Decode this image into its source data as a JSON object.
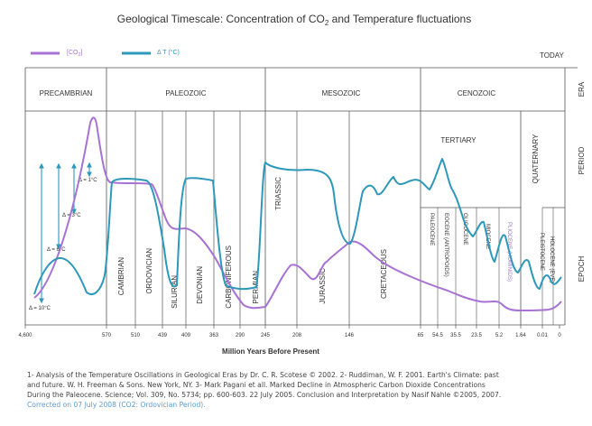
{
  "chart_data": {
    "type": "line",
    "title": "Geological Timescale: Concentration of CO",
    "title_sub": "2",
    "title_rest": " and Temperature fluctuations",
    "xlabel": "Million Years Before Present",
    "today_label": "TODAY",
    "x_ticks": [
      "4,600",
      "570",
      "510",
      "439",
      "409",
      "363",
      "290",
      "245",
      "208",
      "146",
      "65",
      "54.5",
      "35.5",
      "23.5",
      "5.2",
      "1.64",
      "0.01",
      "0"
    ],
    "legend": {
      "co2": "[CO",
      "co2_sub": "2",
      "co2_end": "]",
      "temp": "Δ T (°C)"
    },
    "right_labels": [
      "ERA",
      "PERIOD",
      "EPOCH"
    ],
    "eras": [
      "PRECAMBRIAN",
      "PALEOZOIC",
      "MESOZOIC",
      "CENOZOIC"
    ],
    "tertiary_label": "TERTIARY",
    "quaternary_label": "QUATERNARY",
    "periods": [
      "CAMBRIAN",
      "ORDOVICIAN",
      "SILURIAN",
      "DEVONIAN",
      "CARBONIFEROUS",
      "PERMIAN",
      "TRIASSIC",
      "JURASSIC",
      "CRETACEOUS"
    ],
    "epochs": [
      "PALEOCENE",
      "EOCENE (ANTROPOIDS)",
      "OLIGOCENE",
      "MIOCENE",
      "PLIOCENE (HOMINIDS)",
      "PLEISTOCENE",
      "HOLOCENE (EVE)"
    ],
    "delta_labels": [
      "Δ = 1°C",
      "Δ = 3°C",
      "Δ = 6°C",
      "Δ = 10°C"
    ],
    "colors": {
      "co2": "#a772d4",
      "temp": "#2e98ba",
      "grid": "#555555",
      "arrow": "#2e98ba",
      "pliocene": "#9c7ad6"
    },
    "series": [
      {
        "name": "[CO2]",
        "x": [
          "4,600",
          "570",
          "510",
          "439",
          "409",
          "363",
          "290",
          "245",
          "208",
          "146",
          "65",
          "54.5",
          "35.5",
          "23.5",
          "5.2",
          "1.64",
          "0.01",
          "0"
        ],
        "values": [
          0.19,
          0.81,
          0.64,
          0.6,
          0.59,
          0.33,
          0.0,
          0.01,
          0.39,
          0.57,
          0.31,
          0.24,
          0.16,
          0.12,
          0.05,
          0.03,
          0.03,
          0.11
        ]
      },
      {
        "name": "Δ T (°C)",
        "x": [
          "4,600",
          "570",
          "510",
          "439",
          "409",
          "363",
          "290",
          "245",
          "208",
          "146",
          "65",
          "54.5",
          "35.5",
          "23.5",
          "5.2",
          "1.64",
          "0.01",
          "0"
        ],
        "values": [
          0.11,
          0.79,
          0.8,
          0.73,
          0.79,
          0.79,
          0.1,
          0.67,
          0.77,
          0.71,
          0.64,
          0.74,
          0.51,
          0.49,
          0.47,
          0.19,
          0.3,
          0.21
        ]
      }
    ]
  },
  "notes": {
    "line1": "1- Analysis of the Temperature Oscillations in Geological Eras by Dr. C. R. Scotese © 2002. 2- Ruddiman, W. F. 2001. Earth's Climate: past",
    "line2": "and future. W. H. Freeman & Sons. New York, NY. 3- Mark Pagani et all. Marked Decline in Atmospheric Carbon Dioxide Concentrations",
    "line3": "During the Paleocene. Science; Vol. 309, No. 5734; pp. 600-603. 22 July 2005. Conclusion and Interpretation by Nasif Nahle ©2005, 2007.",
    "line4": "Corrected on 07 July 2008 (CO2: Ordovician Period)."
  }
}
